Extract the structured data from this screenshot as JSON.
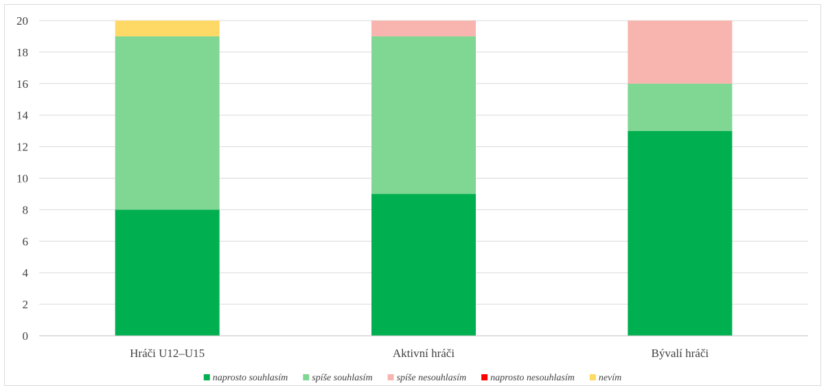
{
  "chart_data": {
    "type": "bar",
    "stacked": true,
    "categories": [
      "Hráči U12–U15",
      "Aktivní hráči",
      "Bývalí hráči"
    ],
    "series": [
      {
        "name": "naprosto souhlasím",
        "color": "#00b050",
        "values": [
          8,
          9,
          13
        ]
      },
      {
        "name": "spíše souhlasím",
        "color": "#7fd793",
        "values": [
          11,
          10,
          3
        ]
      },
      {
        "name": "spíše nesouhlasím",
        "color": "#f8b5b0",
        "values": [
          0,
          1,
          4
        ]
      },
      {
        "name": "naprosto nesouhlasím",
        "color": "#ff0000",
        "values": [
          0,
          0,
          0
        ]
      },
      {
        "name": "nevím",
        "color": "#ffd966",
        "values": [
          1,
          0,
          0
        ]
      }
    ],
    "title": "",
    "xlabel": "",
    "ylabel": "",
    "ylim": [
      0,
      20
    ],
    "yticks": [
      0,
      2,
      4,
      6,
      8,
      10,
      12,
      14,
      16,
      18,
      20
    ],
    "grid": true,
    "legend_position": "bottom"
  }
}
